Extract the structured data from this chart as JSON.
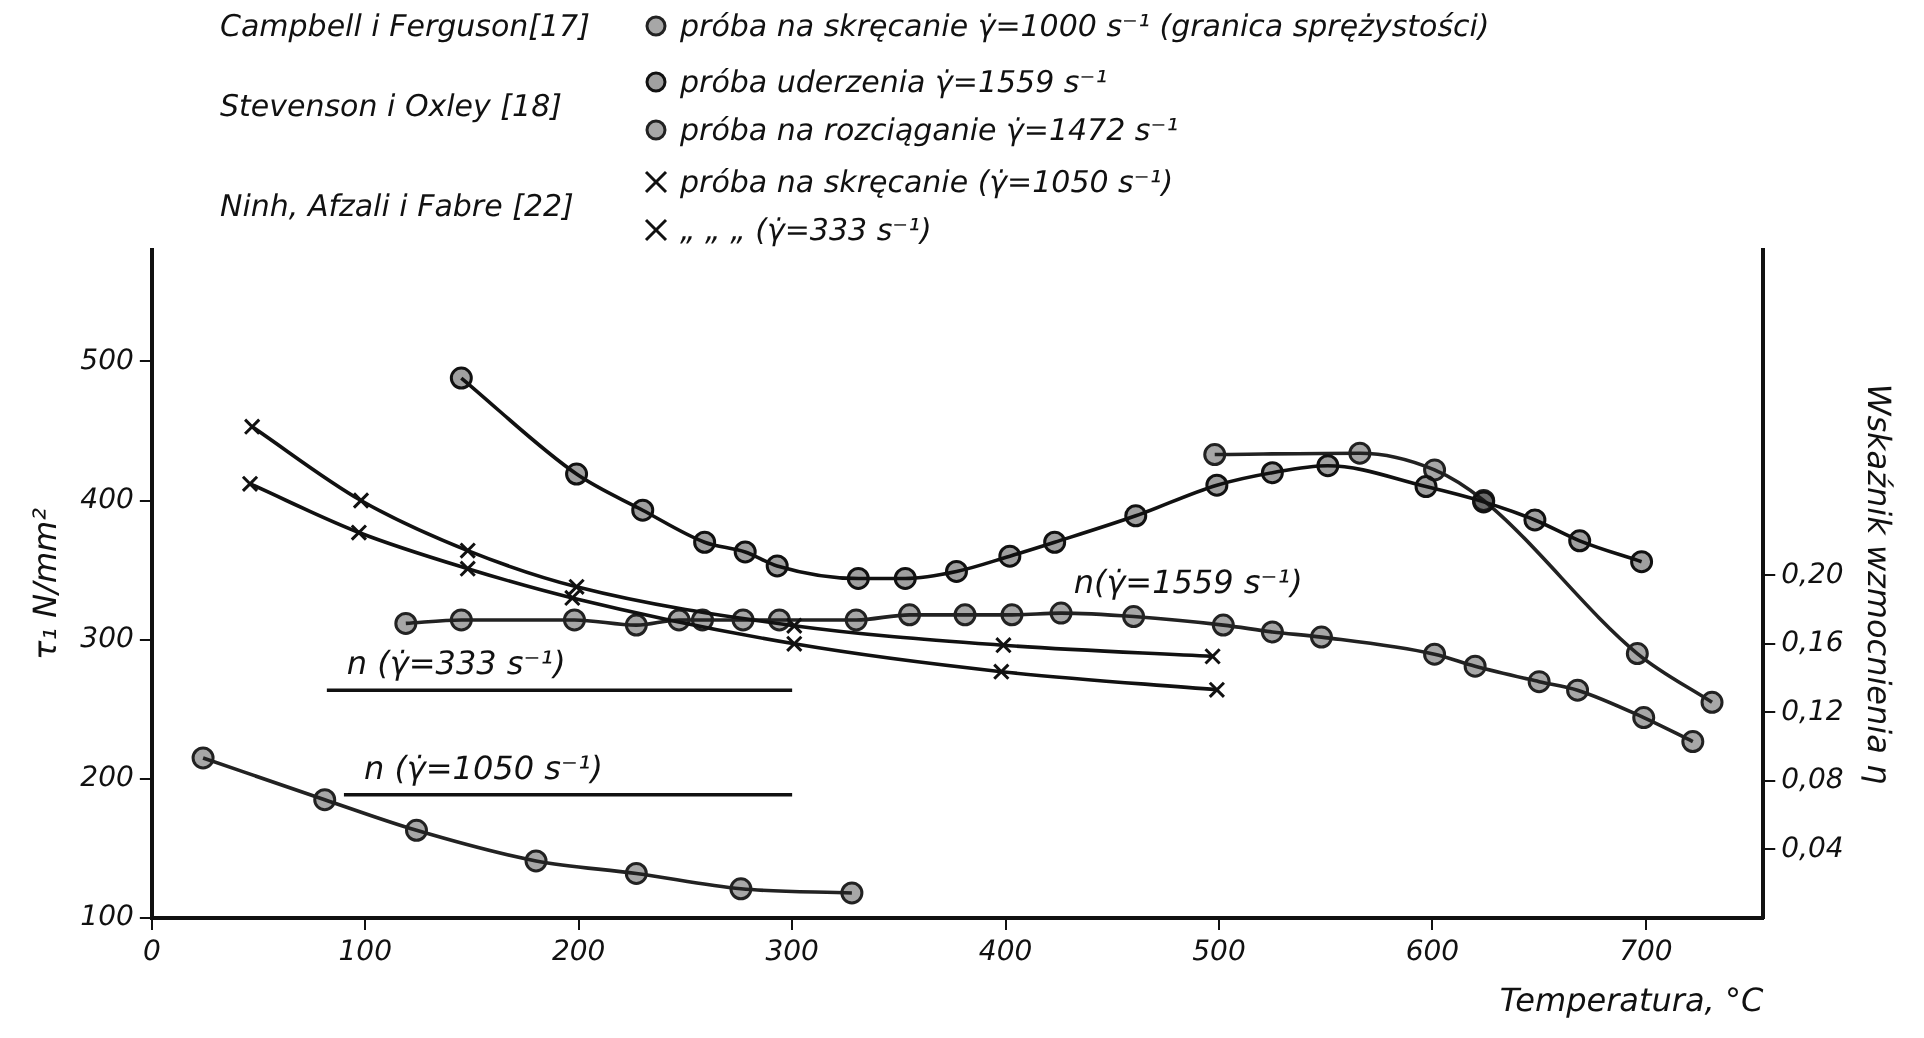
{
  "chart_data": {
    "type": "line",
    "xlabel": "Temperatura, °C",
    "ylabel": "τ₁ N/mm²",
    "y2label": "Wskaźnik wzmocnienia η",
    "annotations": [
      "Campbell i Ferguson[17]",
      "Stevenson i Oxley [18]",
      "Ninh, Afzali i Fabre [22]"
    ],
    "xlim": [
      0,
      755
    ],
    "xticks": [
      0,
      100,
      200,
      300,
      400,
      500,
      600,
      700
    ],
    "ylim": [
      100,
      580
    ],
    "yticks": [
      100,
      200,
      300,
      400,
      500
    ],
    "y2lim": [
      0,
      0.39
    ],
    "y2ticks": [
      {
        "value": 0.04,
        "label": "0,04"
      },
      {
        "value": 0.08,
        "label": "0,08"
      },
      {
        "value": 0.12,
        "label": "0,12"
      },
      {
        "value": 0.16,
        "label": "0,16"
      },
      {
        "value": 0.2,
        "label": "0,20"
      }
    ],
    "grid": false,
    "legend": "top",
    "line_style": "solid",
    "series": [
      {
        "name": "próba na skręcanie γ̇=1000 s⁻¹ (granica sprężystości)",
        "color": "#222222",
        "marker": "circle",
        "x": [
          24,
          81,
          124,
          180,
          227,
          276,
          328
        ],
        "values": [
          215,
          185,
          163,
          141,
          132,
          121,
          118
        ]
      },
      {
        "name": "próba uderzenia γ̇=1559 s⁻¹",
        "color": "#111111",
        "marker": "circle",
        "x": [
          145,
          199,
          230,
          259,
          278,
          293,
          331,
          353,
          377,
          402,
          423,
          461,
          499,
          525,
          551,
          597,
          624,
          648,
          669,
          698
        ],
        "values": [
          488,
          419,
          393,
          370,
          363,
          353,
          344,
          344,
          349,
          360,
          370,
          389,
          411,
          420,
          425,
          410,
          399,
          386,
          371,
          356
        ]
      },
      {
        "name": "próba na rozciąganie γ̇=1472 s⁻¹",
        "color": "#222222",
        "marker": "circle",
        "x": [
          498,
          566,
          601,
          624,
          696,
          731
        ],
        "values": [
          433,
          434,
          422,
          400,
          290,
          255
        ]
      },
      {
        "name": "próba na skręcanie (γ̇=1050 s⁻¹)",
        "color": "#111111",
        "marker": "cross",
        "x": [
          47,
          98,
          148,
          199,
          301,
          399,
          497
        ],
        "values": [
          453,
          400,
          364,
          338,
          310,
          296,
          288
        ]
      },
      {
        "name": "„ „ „ (γ̇=333 s⁻¹)",
        "color": "#111111",
        "marker": "cross",
        "x": [
          46,
          97,
          148,
          197,
          301,
          398,
          499
        ],
        "values": [
          412,
          377,
          351,
          330,
          297,
          277,
          264
        ]
      },
      {
        "name": "n(γ̇=1559 s⁻¹)",
        "color": "#222222",
        "marker": "circle",
        "axis": "y2",
        "x": [
          119,
          145,
          198,
          227,
          247,
          258,
          277,
          294,
          330,
          355,
          381,
          403,
          426,
          460,
          502,
          525,
          548,
          601,
          620,
          650,
          668,
          699,
          722
        ],
        "values": [
          0.172,
          0.174,
          0.174,
          0.171,
          0.174,
          0.174,
          0.174,
          0.174,
          0.174,
          0.177,
          0.177,
          0.177,
          0.178,
          0.176,
          0.171,
          0.167,
          0.164,
          0.154,
          0.147,
          0.138,
          0.133,
          0.117,
          0.103
        ]
      },
      {
        "name": "n (γ̇=333 s⁻¹)",
        "color": "#111111",
        "marker": "none",
        "axis": "y2",
        "x": [
          82,
          300
        ],
        "values": [
          0.133,
          0.133
        ]
      },
      {
        "name": "n (γ̇=1050 s⁻¹)",
        "color": "#111111",
        "marker": "none",
        "axis": "y2",
        "x": [
          90,
          300
        ],
        "values": [
          0.072,
          0.072
        ]
      }
    ]
  }
}
